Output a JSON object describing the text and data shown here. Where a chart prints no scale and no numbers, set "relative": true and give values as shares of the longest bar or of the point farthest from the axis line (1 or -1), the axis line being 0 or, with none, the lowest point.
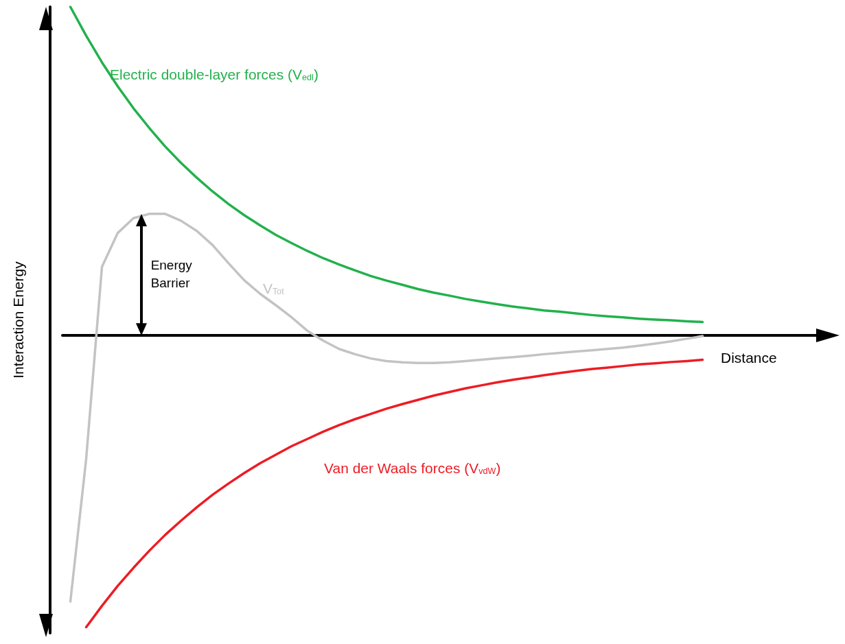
{
  "chart_data": {
    "type": "line",
    "relative": true,
    "xlabel": "Distance",
    "ylabel": "Interaction Energy",
    "legend": false,
    "grid": false,
    "marker": "none",
    "line_style": "solid",
    "categories": [
      null,
      null,
      null,
      null,
      null,
      null,
      null,
      null,
      null,
      null,
      null,
      null,
      null,
      null,
      null,
      null,
      null,
      null,
      null,
      null,
      null,
      null,
      null,
      null,
      null,
      null,
      null,
      null,
      null,
      null,
      null,
      null,
      null,
      null,
      null,
      null,
      null,
      null,
      null,
      null,
      null
    ],
    "series": [
      {
        "name": "Electric double-layer forces (V$_{edl}$)",
        "color": "#22b14c",
        "values": [
          1.0,
          0.912,
          0.831,
          0.758,
          0.691,
          0.631,
          0.575,
          0.525,
          0.48,
          0.438,
          0.4,
          0.366,
          0.335,
          0.306,
          0.281,
          0.257,
          0.235,
          0.216,
          0.198,
          0.181,
          0.167,
          0.154,
          0.141,
          0.13,
          0.121,
          0.111,
          0.103,
          0.095,
          0.088,
          0.082,
          0.076,
          0.072,
          0.067,
          0.062,
          0.058,
          0.055,
          0.051,
          0.048,
          0.046,
          0.043,
          0.041
        ]
      },
      {
        "name": "Van der Waals forces (V$_{vdW}$)",
        "color": "#ed1c24",
        "values": [
          null,
          -0.888,
          -0.823,
          -0.762,
          -0.707,
          -0.655,
          -0.607,
          -0.564,
          -0.523,
          -0.485,
          -0.451,
          -0.419,
          -0.389,
          -0.363,
          -0.337,
          -0.315,
          -0.293,
          -0.273,
          -0.255,
          -0.239,
          -0.223,
          -0.209,
          -0.196,
          -0.183,
          -0.172,
          -0.161,
          -0.152,
          -0.143,
          -0.135,
          -0.128,
          -0.121,
          -0.114,
          -0.108,
          -0.102,
          -0.098,
          -0.093,
          -0.088,
          -0.085,
          -0.081,
          -0.078,
          -0.074
        ]
      },
      {
        "name": "V$_{Tot}$",
        "color": "#c3c3c3",
        "values": [
          -0.81,
          -0.376,
          0.209,
          0.312,
          0.357,
          0.37,
          0.37,
          0.349,
          0.318,
          0.275,
          0.22,
          0.168,
          0.127,
          0.092,
          0.055,
          0.014,
          -0.016,
          -0.041,
          -0.057,
          -0.07,
          -0.078,
          -0.082,
          -0.084,
          -0.084,
          -0.082,
          -0.078,
          -0.074,
          -0.07,
          -0.066,
          -0.062,
          -0.057,
          -0.053,
          -0.049,
          -0.045,
          -0.041,
          -0.037,
          -0.031,
          -0.025,
          -0.018,
          -0.01,
          -0.002
        ]
      }
    ],
    "annotations": [
      "Energy Barrier"
    ]
  }
}
